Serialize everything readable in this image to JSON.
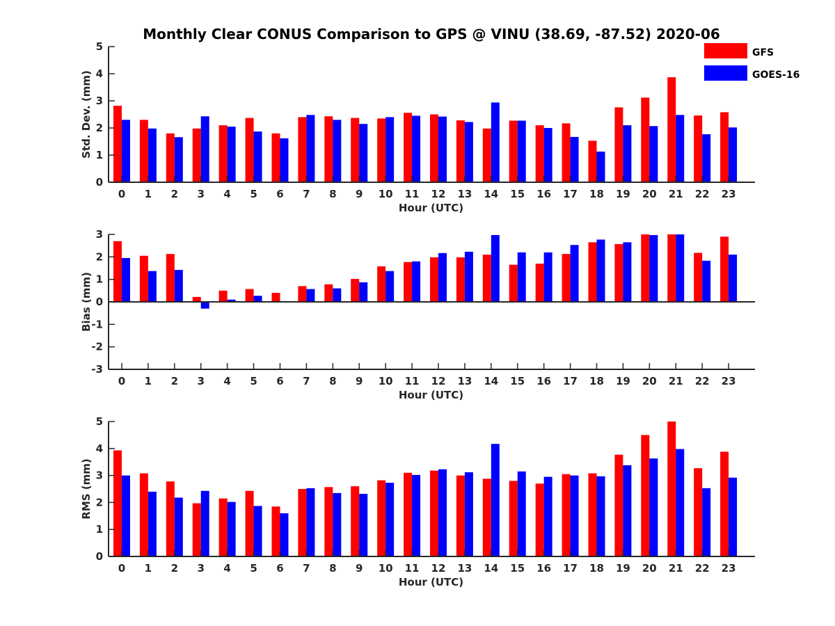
{
  "title": "Monthly Clear CONUS Comparison to GPS @ VINU (38.69, -87.52) 2020-06",
  "colors": {
    "GFS": "#ff0000",
    "GOES-16": "#0000ff"
  },
  "legend": {
    "position": "top-right",
    "entries": [
      "GFS",
      "GOES-16"
    ]
  },
  "chart_data": [
    {
      "type": "bar",
      "ylabel": "Std. Dev. (mm)",
      "xlabel": "Hour (UTC)",
      "ylim": [
        0,
        5
      ],
      "yticks": [
        0,
        1,
        2,
        3,
        4,
        5
      ],
      "grid": false,
      "categories": [
        "0",
        "1",
        "2",
        "3",
        "4",
        "5",
        "6",
        "7",
        "8",
        "9",
        "10",
        "11",
        "12",
        "13",
        "14",
        "15",
        "16",
        "17",
        "18",
        "19",
        "20",
        "21",
        "22",
        "23"
      ],
      "series": [
        {
          "name": "GFS",
          "values": [
            2.82,
            2.3,
            1.8,
            1.98,
            2.1,
            2.37,
            1.8,
            2.4,
            2.43,
            2.37,
            2.35,
            2.56,
            2.5,
            2.28,
            1.98,
            2.27,
            2.1,
            2.17,
            1.53,
            2.76,
            3.12,
            3.87,
            2.46,
            2.58
          ]
        },
        {
          "name": "GOES-16",
          "values": [
            2.3,
            1.98,
            1.66,
            2.43,
            2.05,
            1.87,
            1.62,
            2.48,
            2.3,
            2.15,
            2.4,
            2.45,
            2.42,
            2.22,
            2.94,
            2.27,
            2.0,
            1.67,
            1.13,
            2.1,
            2.07,
            2.48,
            1.77,
            2.02
          ]
        }
      ]
    },
    {
      "type": "bar",
      "ylabel": "Bias (mm)",
      "xlabel": "Hour (UTC)",
      "ylim": [
        -3,
        3
      ],
      "yticks": [
        -3,
        -2,
        -1,
        0,
        1,
        2,
        3
      ],
      "grid": false,
      "categories": [
        "0",
        "1",
        "2",
        "3",
        "4",
        "5",
        "6",
        "7",
        "8",
        "9",
        "10",
        "11",
        "12",
        "13",
        "14",
        "15",
        "16",
        "17",
        "18",
        "19",
        "20",
        "21",
        "22",
        "23"
      ],
      "series": [
        {
          "name": "GFS",
          "values": [
            2.7,
            2.05,
            2.13,
            0.22,
            0.5,
            0.57,
            0.4,
            0.7,
            0.78,
            1.02,
            1.58,
            1.77,
            1.98,
            1.98,
            2.1,
            1.65,
            1.7,
            2.13,
            2.65,
            2.57,
            3.0,
            3.0,
            2.18,
            2.9
          ]
        },
        {
          "name": "GOES-16",
          "values": [
            1.95,
            1.37,
            1.42,
            -0.3,
            0.1,
            0.27,
            0.03,
            0.57,
            0.6,
            0.87,
            1.37,
            1.8,
            2.17,
            2.23,
            2.97,
            2.2,
            2.2,
            2.53,
            2.77,
            2.65,
            2.97,
            3.0,
            1.83,
            2.1
          ]
        }
      ]
    },
    {
      "type": "bar",
      "ylabel": "RMS (mm)",
      "xlabel": "Hour (UTC)",
      "ylim": [
        0,
        5
      ],
      "yticks": [
        0,
        1,
        2,
        3,
        4,
        5
      ],
      "grid": false,
      "categories": [
        "0",
        "1",
        "2",
        "3",
        "4",
        "5",
        "6",
        "7",
        "8",
        "9",
        "10",
        "11",
        "12",
        "13",
        "14",
        "15",
        "16",
        "17",
        "18",
        "19",
        "20",
        "21",
        "22",
        "23"
      ],
      "series": [
        {
          "name": "GFS",
          "values": [
            3.93,
            3.08,
            2.78,
            1.97,
            2.15,
            2.43,
            1.85,
            2.5,
            2.57,
            2.6,
            2.82,
            3.1,
            3.18,
            3.0,
            2.88,
            2.8,
            2.7,
            3.05,
            3.08,
            3.77,
            4.5,
            5.0,
            3.27,
            3.88
          ]
        },
        {
          "name": "GOES-16",
          "values": [
            3.0,
            2.4,
            2.18,
            2.43,
            2.02,
            1.87,
            1.6,
            2.53,
            2.35,
            2.32,
            2.73,
            3.02,
            3.23,
            3.12,
            4.17,
            3.15,
            2.95,
            3.0,
            2.97,
            3.38,
            3.63,
            3.98,
            2.53,
            2.92
          ]
        }
      ]
    }
  ]
}
